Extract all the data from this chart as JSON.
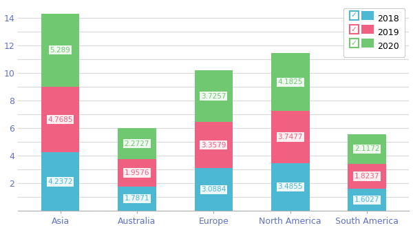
{
  "categories": [
    "Asia",
    "Australia",
    "Europe",
    "North America",
    "South America"
  ],
  "series": {
    "2018": [
      4.2372,
      1.7871,
      3.0884,
      3.4855,
      1.6027
    ],
    "2019": [
      4.7685,
      1.9576,
      3.3579,
      3.7477,
      1.8237
    ],
    "2020": [
      5.289,
      2.2727,
      3.7257,
      4.1825,
      2.1172
    ]
  },
  "colors": {
    "2018": "#4db8d4",
    "2019": "#f06080",
    "2020": "#70c870"
  },
  "label_text_colors": {
    "2018": "#4db8d4",
    "2019": "#f06080",
    "2020": "#70c870"
  },
  "ylim": [
    0,
    15
  ],
  "yticks_major": [
    2,
    4,
    6,
    8,
    10,
    12,
    14
  ],
  "yticks_minor": [
    1,
    3,
    5,
    7,
    9,
    11,
    13
  ],
  "grid_color": "#d8d8d8",
  "bg_color": "#ffffff",
  "bar_width": 0.5,
  "label_fontsize": 7.5,
  "tick_label_color": "#6070c8",
  "ytick_label_color": "#6070c8",
  "axis_label_fontsize": 9,
  "legend_border_colors": {
    "2018": "#4db8d4",
    "2019": "#f06080",
    "2020": "#70c870"
  }
}
